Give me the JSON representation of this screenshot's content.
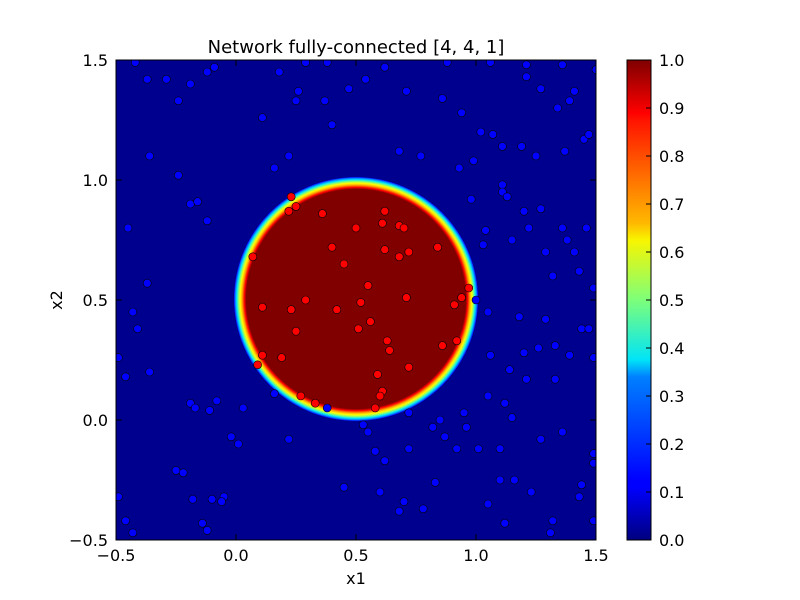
{
  "chart_data": {
    "type": "scatter",
    "title": "Network fully-connected [4, 4, 1]",
    "xlabel": "x1",
    "ylabel": "x2",
    "xlim": [
      -0.5,
      1.5
    ],
    "ylim": [
      -0.5,
      1.5
    ],
    "x_ticks": [
      "−0.5",
      "0.0",
      "0.5",
      "1.0",
      "1.5"
    ],
    "y_ticks": [
      "−0.5",
      "0.0",
      "0.5",
      "1.0",
      "1.5"
    ],
    "background": "heatmap of network output over the plane; approx. 1.0 inside a circle centered near (0.5, 0.5) of radius about 0.5, approx. 0.0 outside",
    "colormap": "jet",
    "colorbar": {
      "range": [
        0.0,
        1.0
      ],
      "ticks": [
        "0.0",
        "0.1",
        "0.2",
        "0.3",
        "0.4",
        "0.5",
        "0.6",
        "0.7",
        "0.8",
        "0.9",
        "1.0"
      ]
    },
    "series": [
      {
        "color": "#0000ff",
        "points": [
          [
            -0.42,
            1.49
          ],
          [
            -0.37,
            1.42
          ],
          [
            -0.29,
            1.42
          ],
          [
            -0.19,
            1.4
          ],
          [
            -0.12,
            1.45
          ],
          [
            -0.09,
            1.47
          ],
          [
            0.18,
            1.45
          ],
          [
            0.29,
            1.49
          ],
          [
            0.38,
            1.49
          ],
          [
            0.62,
            1.47
          ],
          [
            0.88,
            1.49
          ],
          [
            1.06,
            1.49
          ],
          [
            1.21,
            1.48
          ],
          [
            1.36,
            1.48
          ],
          [
            1.5,
            1.46
          ],
          [
            -0.24,
            1.33
          ],
          [
            0.11,
            1.26
          ],
          [
            0.26,
            1.37
          ],
          [
            0.25,
            1.33
          ],
          [
            0.37,
            1.33
          ],
          [
            0.47,
            1.38
          ],
          [
            0.54,
            1.42
          ],
          [
            0.71,
            1.37
          ],
          [
            0.86,
            1.34
          ],
          [
            0.94,
            1.28
          ],
          [
            1.21,
            1.43
          ],
          [
            1.27,
            1.38
          ],
          [
            1.34,
            1.3
          ],
          [
            1.41,
            1.37
          ],
          [
            1.39,
            1.33
          ],
          [
            -0.36,
            1.1
          ],
          [
            -0.24,
            1.02
          ],
          [
            -0.19,
            0.9
          ],
          [
            -0.16,
            0.91
          ],
          [
            -0.12,
            0.83
          ],
          [
            -0.45,
            0.8
          ],
          [
            -0.37,
            0.57
          ],
          [
            -0.43,
            0.45
          ],
          [
            -0.41,
            0.38
          ],
          [
            -0.49,
            0.26
          ],
          [
            -0.36,
            0.2
          ],
          [
            -0.46,
            0.18
          ],
          [
            0.16,
            1.05
          ],
          [
            0.22,
            1.1
          ],
          [
            0.4,
            1.23
          ],
          [
            0.68,
            1.12
          ],
          [
            0.77,
            1.1
          ],
          [
            0.93,
            1.05
          ],
          [
            0.99,
            1.08
          ],
          [
            1.02,
            1.2
          ],
          [
            1.07,
            1.19
          ],
          [
            1.11,
            1.14
          ],
          [
            1.19,
            1.14
          ],
          [
            1.25,
            1.1
          ],
          [
            1.37,
            1.12
          ],
          [
            1.45,
            1.17
          ],
          [
            1.47,
            1.19
          ],
          [
            1.11,
            0.98
          ],
          [
            1.11,
            0.95
          ],
          [
            0.98,
            0.92
          ],
          [
            1.04,
            0.79
          ],
          [
            1.03,
            0.73
          ],
          [
            1.13,
            0.93
          ],
          [
            1.2,
            0.87
          ],
          [
            1.27,
            0.88
          ],
          [
            1.15,
            0.75
          ],
          [
            1.22,
            0.8
          ],
          [
            1.29,
            0.7
          ],
          [
            1.36,
            0.8
          ],
          [
            1.38,
            0.75
          ],
          [
            1.41,
            0.7
          ],
          [
            1.46,
            0.8
          ],
          [
            1.32,
            0.6
          ],
          [
            1.43,
            0.62
          ],
          [
            1.49,
            0.55
          ],
          [
            1.0,
            0.5
          ],
          [
            1.05,
            0.45
          ],
          [
            1.18,
            0.43
          ],
          [
            1.29,
            0.42
          ],
          [
            1.44,
            0.38
          ],
          [
            1.47,
            0.38
          ],
          [
            1.33,
            0.31
          ],
          [
            1.26,
            0.3
          ],
          [
            1.39,
            0.27
          ],
          [
            1.49,
            0.26
          ],
          [
            1.2,
            0.28
          ],
          [
            1.14,
            0.21
          ],
          [
            1.06,
            0.27
          ],
          [
            1.21,
            0.17
          ],
          [
            1.33,
            0.17
          ],
          [
            -0.19,
            0.07
          ],
          [
            -0.17,
            0.05
          ],
          [
            -0.11,
            0.04
          ],
          [
            -0.08,
            0.08
          ],
          [
            0.03,
            0.05
          ],
          [
            0.16,
            0.11
          ],
          [
            0.22,
            -0.08
          ],
          [
            0.38,
            0.05
          ],
          [
            0.53,
            -0.02
          ],
          [
            0.55,
            -0.05
          ],
          [
            0.72,
            0.03
          ],
          [
            0.82,
            -0.03
          ],
          [
            0.85,
            0.0
          ],
          [
            0.95,
            0.03
          ],
          [
            1.05,
            0.1
          ],
          [
            1.12,
            0.07
          ],
          [
            1.15,
            0.01
          ],
          [
            -0.02,
            -0.07
          ],
          [
            0.01,
            -0.1
          ],
          [
            0.58,
            -0.13
          ],
          [
            0.62,
            -0.17
          ],
          [
            0.72,
            -0.12
          ],
          [
            0.87,
            -0.07
          ],
          [
            0.92,
            -0.12
          ],
          [
            0.96,
            -0.03
          ],
          [
            1.01,
            -0.12
          ],
          [
            1.1,
            -0.12
          ],
          [
            1.27,
            -0.08
          ],
          [
            1.36,
            -0.05
          ],
          [
            1.49,
            -0.14
          ],
          [
            1.49,
            -0.18
          ],
          [
            -0.25,
            -0.21
          ],
          [
            -0.22,
            -0.22
          ],
          [
            -0.18,
            -0.33
          ],
          [
            -0.05,
            -0.32
          ],
          [
            -0.06,
            -0.34
          ],
          [
            -0.1,
            -0.33
          ],
          [
            -0.14,
            -0.43
          ],
          [
            -0.12,
            -0.46
          ],
          [
            -0.49,
            -0.32
          ],
          [
            -0.46,
            -0.42
          ],
          [
            -0.43,
            -0.47
          ],
          [
            -0.17,
            -0.52
          ],
          [
            0.45,
            -0.28
          ],
          [
            0.6,
            -0.3
          ],
          [
            0.7,
            -0.34
          ],
          [
            0.68,
            -0.38
          ],
          [
            0.78,
            -0.37
          ],
          [
            0.83,
            -0.26
          ],
          [
            1.1,
            -0.25
          ],
          [
            1.16,
            -0.25
          ],
          [
            1.44,
            -0.27
          ],
          [
            1.43,
            -0.32
          ],
          [
            1.32,
            -0.42
          ],
          [
            1.31,
            -0.47
          ],
          [
            1.12,
            -0.43
          ],
          [
            1.05,
            -0.35
          ],
          [
            1.23,
            -0.3
          ],
          [
            1.49,
            -0.42
          ]
        ]
      },
      {
        "color": "#ff0000",
        "points": [
          [
            0.23,
            0.93
          ],
          [
            0.25,
            0.89
          ],
          [
            0.22,
            0.87
          ],
          [
            0.36,
            0.86
          ],
          [
            0.62,
            0.87
          ],
          [
            0.61,
            0.82
          ],
          [
            0.68,
            0.81
          ],
          [
            0.7,
            0.8
          ],
          [
            0.5,
            0.8
          ],
          [
            0.4,
            0.72
          ],
          [
            0.62,
            0.71
          ],
          [
            0.72,
            0.7
          ],
          [
            0.84,
            0.72
          ],
          [
            0.68,
            0.68
          ],
          [
            0.45,
            0.65
          ],
          [
            0.07,
            0.68
          ],
          [
            0.55,
            0.56
          ],
          [
            0.71,
            0.51
          ],
          [
            0.97,
            0.55
          ],
          [
            0.94,
            0.51
          ],
          [
            0.91,
            0.48
          ],
          [
            0.11,
            0.47
          ],
          [
            0.29,
            0.5
          ],
          [
            0.23,
            0.46
          ],
          [
            0.42,
            0.46
          ],
          [
            0.52,
            0.49
          ],
          [
            0.56,
            0.41
          ],
          [
            0.51,
            0.38
          ],
          [
            0.25,
            0.37
          ],
          [
            0.63,
            0.33
          ],
          [
            0.92,
            0.33
          ],
          [
            0.86,
            0.31
          ],
          [
            0.64,
            0.29
          ],
          [
            0.11,
            0.27
          ],
          [
            0.19,
            0.26
          ],
          [
            0.09,
            0.23
          ],
          [
            0.59,
            0.19
          ],
          [
            0.72,
            0.22
          ],
          [
            0.61,
            0.12
          ],
          [
            0.6,
            0.1
          ],
          [
            0.27,
            0.1
          ],
          [
            0.33,
            0.07
          ],
          [
            0.58,
            0.05
          ]
        ]
      }
    ]
  }
}
